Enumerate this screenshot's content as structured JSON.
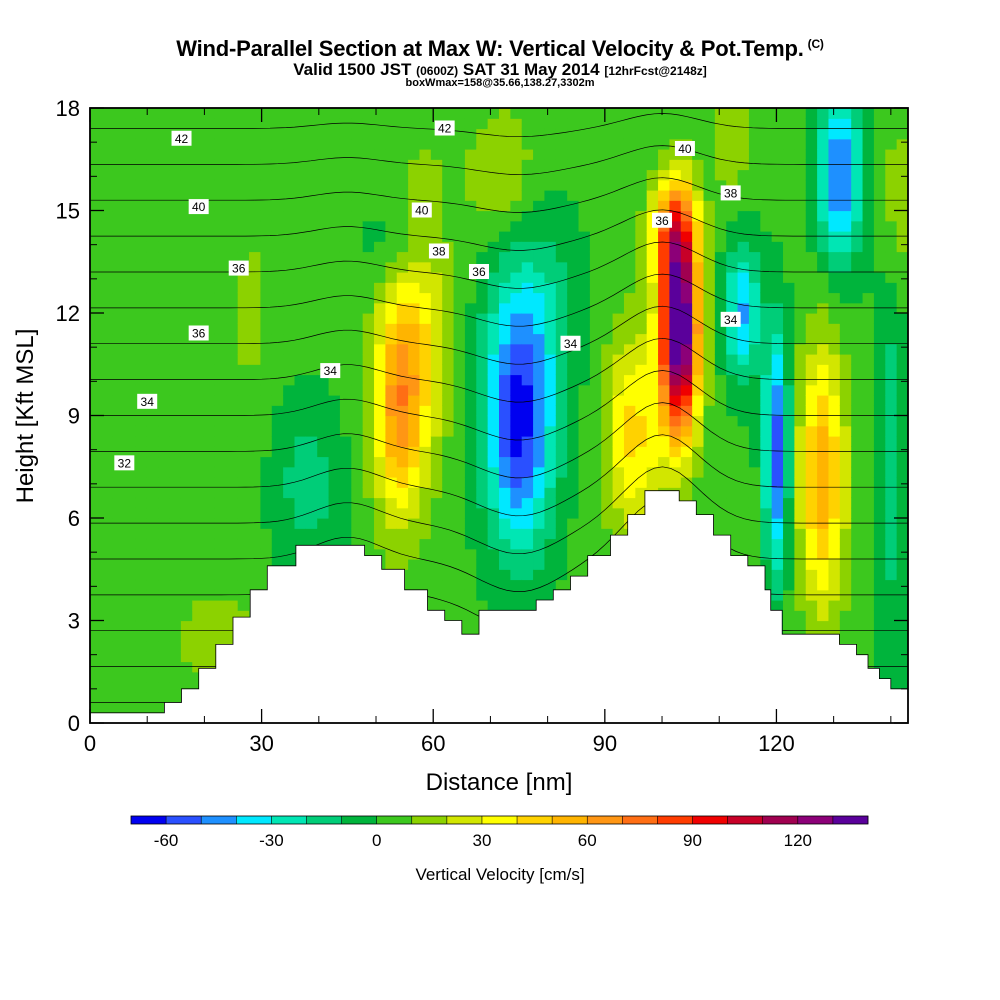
{
  "title": {
    "main": "Wind-Parallel Section at Max W: Vertical Velocity & Pot.Temp.",
    "copyright": "(C)",
    "valid": "Valid 1500 JST",
    "valid_utc": "(0600Z)",
    "date": "SAT 31 May 2014",
    "forecast": "[12hrFcst@2148z]",
    "box": "boxWmax=158@35.66,138.27,3302m"
  },
  "chart_data": {
    "type": "heatmap",
    "xlabel": "Distance [nm]",
    "ylabel": "Height [Kft MSL]",
    "xlim": [
      0,
      143
    ],
    "ylim": [
      0,
      18
    ],
    "x_ticks": [
      "0",
      "30",
      "60",
      "90",
      "120"
    ],
    "y_ticks": [
      "0",
      "3",
      "6",
      "9",
      "12",
      "15",
      "18"
    ],
    "colorbar": {
      "label": "Vertical Velocity [cm/s]",
      "min": -70,
      "max": 140,
      "step": 10,
      "tick_labels": [
        "-60",
        "-30",
        "0",
        "30",
        "60",
        "90",
        "120"
      ],
      "colors": [
        "#0000f0",
        "#2a50ff",
        "#1e90ff",
        "#00e8ff",
        "#00e6b4",
        "#00cd78",
        "#00b43c",
        "#3cc81e",
        "#8cd200",
        "#d2e600",
        "#ffff00",
        "#ffd200",
        "#ffb400",
        "#ff9614",
        "#ff6e14",
        "#ff3c00",
        "#f00000",
        "#c80028",
        "#a00050",
        "#8c0078",
        "#5a009b"
      ]
    },
    "contour_label": "Potential Temperature (C)",
    "contour_labels": [
      {
        "text": "42",
        "x": 16,
        "y": 17.1
      },
      {
        "text": "42",
        "x": 62,
        "y": 17.4
      },
      {
        "text": "40",
        "x": 104,
        "y": 16.8
      },
      {
        "text": "40",
        "x": 19,
        "y": 15.1
      },
      {
        "text": "40",
        "x": 58,
        "y": 15.0
      },
      {
        "text": "38",
        "x": 112,
        "y": 15.5
      },
      {
        "text": "36",
        "x": 100,
        "y": 14.7
      },
      {
        "text": "38",
        "x": 61,
        "y": 13.8
      },
      {
        "text": "36",
        "x": 68,
        "y": 13.2
      },
      {
        "text": "36",
        "x": 26,
        "y": 13.3
      },
      {
        "text": "36",
        "x": 19,
        "y": 11.4
      },
      {
        "text": "34",
        "x": 84,
        "y": 11.1
      },
      {
        "text": "34",
        "x": 112,
        "y": 11.8
      },
      {
        "text": "34",
        "x": 42,
        "y": 10.3
      },
      {
        "text": "34",
        "x": 10,
        "y": 9.4
      },
      {
        "text": "32",
        "x": 6,
        "y": 7.6
      }
    ],
    "terrain_kft": [
      [
        0,
        0.3
      ],
      [
        13,
        0.3
      ],
      [
        13,
        0.6
      ],
      [
        16,
        0.6
      ],
      [
        16,
        1.0
      ],
      [
        19,
        1.0
      ],
      [
        19,
        1.6
      ],
      [
        22,
        1.6
      ],
      [
        22,
        2.3
      ],
      [
        25,
        2.3
      ],
      [
        25,
        3.1
      ],
      [
        28,
        3.1
      ],
      [
        28,
        3.9
      ],
      [
        31,
        3.9
      ],
      [
        31,
        4.6
      ],
      [
        36,
        4.6
      ],
      [
        36,
        5.2
      ],
      [
        48,
        5.2
      ],
      [
        48,
        4.9
      ],
      [
        51,
        4.9
      ],
      [
        51,
        4.5
      ],
      [
        55,
        4.5
      ],
      [
        55,
        3.9
      ],
      [
        59,
        3.9
      ],
      [
        59,
        3.3
      ],
      [
        62,
        3.3
      ],
      [
        62,
        3.0
      ],
      [
        65,
        3.0
      ],
      [
        65,
        2.6
      ],
      [
        68,
        2.6
      ],
      [
        68,
        3.3
      ],
      [
        78,
        3.3
      ],
      [
        78,
        3.6
      ],
      [
        81,
        3.6
      ],
      [
        81,
        3.9
      ],
      [
        84,
        3.9
      ],
      [
        84,
        4.3
      ],
      [
        87,
        4.3
      ],
      [
        87,
        4.9
      ],
      [
        91,
        4.9
      ],
      [
        91,
        5.5
      ],
      [
        94,
        5.5
      ],
      [
        94,
        6.1
      ],
      [
        97,
        6.1
      ],
      [
        97,
        6.8
      ],
      [
        103,
        6.8
      ],
      [
        103,
        6.5
      ],
      [
        106,
        6.5
      ],
      [
        106,
        6.1
      ],
      [
        109,
        6.1
      ],
      [
        109,
        5.5
      ],
      [
        112,
        5.5
      ],
      [
        112,
        4.9
      ],
      [
        115,
        4.9
      ],
      [
        115,
        4.6
      ],
      [
        118,
        4.6
      ],
      [
        118,
        3.9
      ],
      [
        119,
        3.9
      ],
      [
        119,
        3.3
      ],
      [
        121,
        3.3
      ],
      [
        121,
        2.6
      ],
      [
        131,
        2.6
      ],
      [
        131,
        2.3
      ],
      [
        134,
        2.3
      ],
      [
        134,
        2.0
      ],
      [
        136,
        2.0
      ],
      [
        136,
        1.6
      ],
      [
        138,
        1.6
      ],
      [
        138,
        1.3
      ],
      [
        140,
        1.3
      ],
      [
        140,
        1.0
      ],
      [
        143,
        1.0
      ]
    ],
    "updraft_max_cm_s": 158,
    "features": [
      {
        "name": "updraft",
        "x": 54,
        "y": 9.0,
        "w": 60
      },
      {
        "name": "downdraft",
        "x": 75,
        "y": 8.5,
        "w": -60
      },
      {
        "name": "strong-updraft",
        "x": 103,
        "y": 11.5,
        "w": 140
      },
      {
        "name": "downdraft",
        "x": 120,
        "y": 8.0,
        "w": -60
      },
      {
        "name": "updraft",
        "x": 128,
        "y": 7.0,
        "w": 55
      },
      {
        "name": "downdraft-upper",
        "x": 131,
        "y": 16.0,
        "w": -55
      }
    ]
  }
}
